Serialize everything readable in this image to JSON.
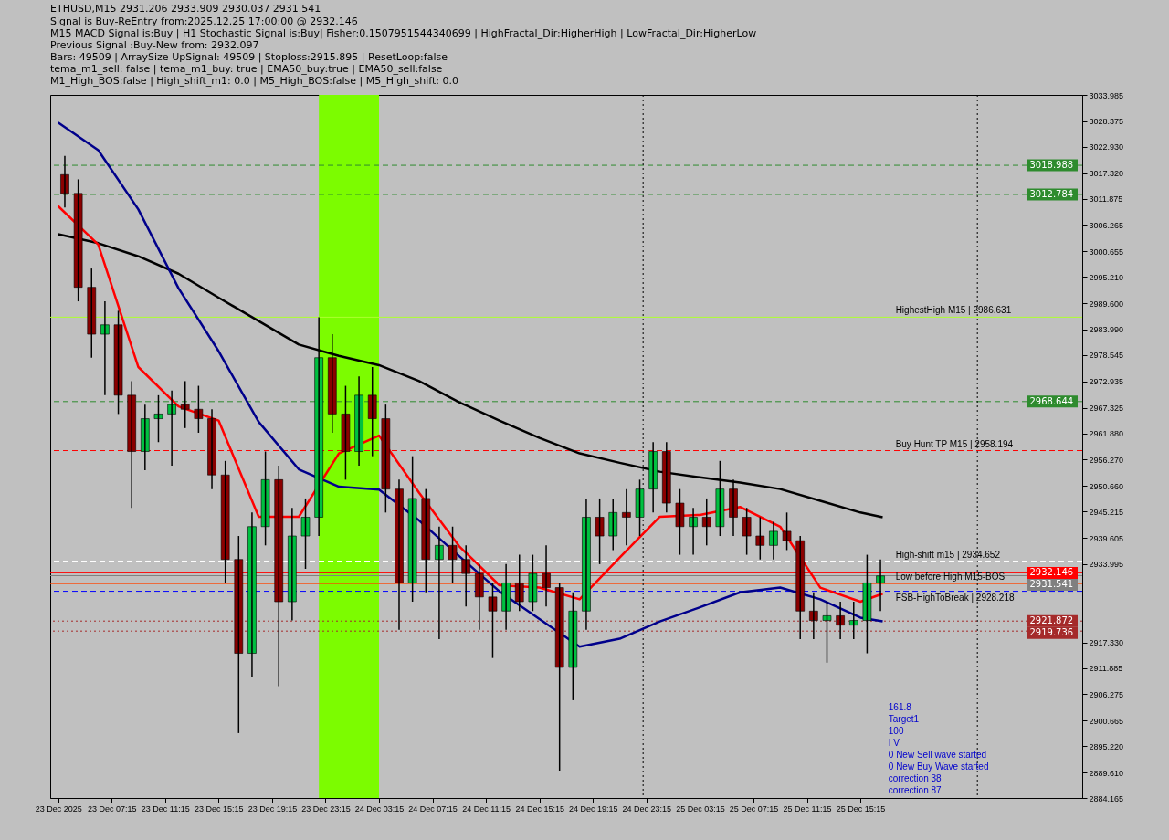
{
  "chart_data": {
    "type": "candlestick",
    "title": "ETHUSD,M15  2931.206 2933.909 2930.037 2931.541",
    "annotations": [
      "Signal is Buy-ReEntry from:2025.12.25 17:00:00 @ 2932.146",
      "M15 MACD Signal is:Buy | H1 Stochastic Signal is:Buy| Fisher:0.1507951544340699 | HighFractal_Dir:HigherHigh | LowFractal_Dir:HigherLow",
      "Previous Signal :Buy-New from: 2932.097",
      "Bars: 49509 | ArraySize UpSignal: 49509 | Stoploss:2915.895 | ResetLoop:false",
      "tema_m1_sell: false | tema_m1_buy: true | EMA50_buy:true | EMA50_sell:false",
      "M1_High_BOS:false | High_shift_m1: 0.0 | M5_High_BOS:false | M5_High_shift: 0.0",
      "161.8",
      "Target1",
      "100",
      "I V",
      "0 New Sell wave started",
      "0 New Buy Wave started",
      "correction 38",
      "correction 87"
    ],
    "x": [
      "2025-12-23T03:45",
      "2025-12-23T04:45",
      "2025-12-23T05:45",
      "2025-12-23T06:45",
      "2025-12-23T07:45",
      "2025-12-23T08:45",
      "2025-12-23T09:45",
      "2025-12-23T10:45",
      "2025-12-23T11:45",
      "2025-12-23T12:45",
      "2025-12-23T13:45",
      "2025-12-23T14:45",
      "2025-12-23T15:45",
      "2025-12-23T16:45",
      "2025-12-23T17:45",
      "2025-12-23T18:45",
      "2025-12-23T19:45",
      "2025-12-23T20:45",
      "2025-12-23T21:45",
      "2025-12-23T22:45",
      "2025-12-23T23:45",
      "2025-12-24T00:45",
      "2025-12-24T01:45",
      "2025-12-24T02:45",
      "2025-12-24T03:45",
      "2025-12-24T04:45",
      "2025-12-24T05:45",
      "2025-12-24T06:45",
      "2025-12-24T07:45",
      "2025-12-24T08:45",
      "2025-12-24T09:45",
      "2025-12-24T10:45",
      "2025-12-24T11:45",
      "2025-12-24T12:45",
      "2025-12-24T13:45",
      "2025-12-24T14:45",
      "2025-12-24T15:45",
      "2025-12-24T16:45",
      "2025-12-24T17:45",
      "2025-12-24T18:45",
      "2025-12-24T19:45",
      "2025-12-24T20:45",
      "2025-12-24T21:45",
      "2025-12-24T22:45",
      "2025-12-24T23:45",
      "2025-12-25T00:45",
      "2025-12-25T01:45",
      "2025-12-25T02:45",
      "2025-12-25T03:45",
      "2025-12-25T04:45",
      "2025-12-25T05:45",
      "2025-12-25T06:45",
      "2025-12-25T07:45",
      "2025-12-25T08:45",
      "2025-12-25T09:45",
      "2025-12-25T10:45",
      "2025-12-25T11:45",
      "2025-12-25T12:45",
      "2025-12-25T13:45",
      "2025-12-25T14:45",
      "2025-12-25T15:45",
      "2025-12-25T16:45"
    ],
    "ohlc": [
      [
        3017,
        3021,
        3010,
        3013
      ],
      [
        3013,
        3016,
        2990,
        2993
      ],
      [
        2993,
        2997,
        2978,
        2983
      ],
      [
        2983,
        2990,
        2970,
        2985
      ],
      [
        2985,
        2988,
        2966,
        2970
      ],
      [
        2970,
        2973,
        2946,
        2958
      ],
      [
        2958,
        2968,
        2954,
        2965
      ],
      [
        2965,
        2970,
        2960,
        2966
      ],
      [
        2966,
        2971,
        2955,
        2968
      ],
      [
        2968,
        2973,
        2963,
        2967
      ],
      [
        2967,
        2972,
        2962,
        2965
      ],
      [
        2965,
        2967,
        2950,
        2953
      ],
      [
        2953,
        2956,
        2930,
        2935
      ],
      [
        2935,
        2940,
        2898,
        2915
      ],
      [
        2915,
        2945,
        2910,
        2942
      ],
      [
        2942,
        2958,
        2938,
        2952
      ],
      [
        2952,
        2955,
        2908,
        2926
      ],
      [
        2926,
        2946,
        2922,
        2940
      ],
      [
        2940,
        2948,
        2933,
        2944
      ],
      [
        2944,
        2986.6,
        2940,
        2978
      ],
      [
        2978,
        2983,
        2962,
        2966
      ],
      [
        2966,
        2972,
        2952,
        2958
      ],
      [
        2958,
        2974,
        2955,
        2970
      ],
      [
        2970,
        2976,
        2957,
        2965
      ],
      [
        2965,
        2968,
        2945,
        2950
      ],
      [
        2950,
        2952,
        2920,
        2930
      ],
      [
        2930,
        2957,
        2926,
        2948
      ],
      [
        2948,
        2950,
        2928,
        2935
      ],
      [
        2935,
        2942,
        2918,
        2938
      ],
      [
        2938,
        2942,
        2930,
        2935
      ],
      [
        2935,
        2938,
        2925,
        2932
      ],
      [
        2932,
        2934,
        2920,
        2927
      ],
      [
        2927,
        2930,
        2914,
        2924
      ],
      [
        2924,
        2934,
        2920,
        2930
      ],
      [
        2930,
        2936,
        2924,
        2926
      ],
      [
        2926,
        2936,
        2924,
        2932
      ],
      [
        2932,
        2938,
        2925,
        2929
      ],
      [
        2929,
        2930,
        2890,
        2912
      ],
      [
        2912,
        2928,
        2905,
        2924
      ],
      [
        2924,
        2948,
        2920,
        2944
      ],
      [
        2944,
        2948,
        2934,
        2940
      ],
      [
        2940,
        2948,
        2937,
        2945
      ],
      [
        2945,
        2950,
        2938,
        2944
      ],
      [
        2944,
        2952,
        2940,
        2950
      ],
      [
        2950,
        2960,
        2945,
        2958
      ],
      [
        2958,
        2960,
        2945,
        2947
      ],
      [
        2947,
        2950,
        2936,
        2942
      ],
      [
        2942,
        2946,
        2936,
        2944
      ],
      [
        2944,
        2948,
        2938,
        2942
      ],
      [
        2942,
        2956,
        2940,
        2950
      ],
      [
        2950,
        2952,
        2940,
        2944
      ],
      [
        2944,
        2946,
        2936,
        2940
      ],
      [
        2940,
        2944,
        2935,
        2938
      ],
      [
        2938,
        2943,
        2935,
        2941
      ],
      [
        2941,
        2945,
        2937,
        2939
      ],
      [
        2939,
        2940,
        2918,
        2924
      ],
      [
        2924,
        2928,
        2918,
        2922
      ],
      [
        2922,
        2926,
        2913,
        2923
      ],
      [
        2923,
        2926,
        2918,
        2921
      ],
      [
        2921,
        2926,
        2918,
        2922
      ],
      [
        2922,
        2936,
        2915,
        2930
      ],
      [
        2930,
        2935,
        2924,
        2931.5
      ]
    ],
    "series": [
      {
        "type": "line",
        "color": "#000000",
        "x": [
          "2025-12-23T03:15",
          "2025-12-23T06:15",
          "2025-12-23T09:15",
          "2025-12-23T12:15",
          "2025-12-23T15:15",
          "2025-12-23T18:15",
          "2025-12-23T21:15",
          "2025-12-24T00:15",
          "2025-12-24T03:15",
          "2025-12-24T06:15",
          "2025-12-24T09:15",
          "2025-12-24T12:15",
          "2025-12-24T15:15",
          "2025-12-24T18:15",
          "2025-12-24T21:15",
          "2025-12-25T00:15",
          "2025-12-25T03:15",
          "2025-12-25T06:15",
          "2025-12-25T09:15",
          "2025-12-25T12:15",
          "2025-12-25T15:15",
          "2025-12-25T16:55"
        ],
        "values": [
          3004.3,
          3002.4,
          2999.6,
          2995.9,
          2990.8,
          2985.8,
          2980.8,
          2978.4,
          2976.4,
          2973.0,
          2968.5,
          2964.6,
          2960.9,
          2957.6,
          2955.6,
          2953.7,
          2952.5,
          2951.4,
          2950.0,
          2947.5,
          2945.0,
          2944.0
        ]
      },
      {
        "type": "line",
        "color": "#00008b",
        "x": [
          "2025-12-23T03:15",
          "2025-12-23T06:15",
          "2025-12-23T09:15",
          "2025-12-23T12:15",
          "2025-12-23T15:15",
          "2025-12-23T18:15",
          "2025-12-23T21:15",
          "2025-12-24T00:15",
          "2025-12-24T03:15",
          "2025-12-24T06:15",
          "2025-12-24T09:15",
          "2025-12-24T12:15",
          "2025-12-24T15:15",
          "2025-12-24T18:15",
          "2025-12-24T21:15",
          "2025-12-25T00:15",
          "2025-12-25T03:15",
          "2025-12-25T06:15",
          "2025-12-25T09:15",
          "2025-12-25T12:15",
          "2025-12-25T15:15",
          "2025-12-25T16:55"
        ],
        "values": [
          3028.1,
          3022.2,
          3009.6,
          2992.8,
          2979.4,
          2964.3,
          2954.2,
          2950.5,
          2949.9,
          2943.3,
          2935.7,
          2928.2,
          2922.3,
          2916.4,
          2918.1,
          2921.8,
          2924.8,
          2928.0,
          2929.0,
          2926.5,
          2922.6,
          2921.8
        ]
      },
      {
        "type": "line",
        "color": "#ff0000",
        "x": [
          "2025-12-23T03:15",
          "2025-12-23T06:15",
          "2025-12-23T09:15",
          "2025-12-23T12:15",
          "2025-12-23T15:15",
          "2025-12-23T18:15",
          "2025-12-23T21:15",
          "2025-12-24T00:15",
          "2025-12-24T03:15",
          "2025-12-24T06:15",
          "2025-12-24T09:15",
          "2025-12-24T12:15",
          "2025-12-24T15:15",
          "2025-12-24T18:15",
          "2025-12-24T21:15",
          "2025-12-25T00:15",
          "2025-12-25T03:15",
          "2025-12-25T06:15",
          "2025-12-25T09:15",
          "2025-12-25T12:15",
          "2025-12-25T15:15",
          "2025-12-25T16:55"
        ],
        "values": [
          3010.3,
          3002.1,
          2976.0,
          2967.6,
          2964.6,
          2944.1,
          2944.1,
          2957.6,
          2961.4,
          2949.2,
          2937.8,
          2929.5,
          2929.0,
          2926.5,
          2935.4,
          2944.1,
          2944.5,
          2946.2,
          2942.0,
          2929.0,
          2926.0,
          2927.7
        ]
      }
    ],
    "xlim": [
      "2025-12-23T03:00",
      "2025-12-26T07:30"
    ],
    "xticks": [
      {
        "value": "2025-12-23T03:15",
        "label": "23 Dec 2025"
      },
      {
        "value": "2025-12-23T07:15",
        "label": "23 Dec 07:15"
      },
      {
        "value": "2025-12-23T11:15",
        "label": "23 Dec 11:15"
      },
      {
        "value": "2025-12-23T15:15",
        "label": "23 Dec 15:15"
      },
      {
        "value": "2025-12-23T19:15",
        "label": "23 Dec 19:15"
      },
      {
        "value": "2025-12-23T23:15",
        "label": "23 Dec 23:15"
      },
      {
        "value": "2025-12-24T03:15",
        "label": "24 Dec 03:15"
      },
      {
        "value": "2025-12-24T07:15",
        "label": "24 Dec 07:15"
      },
      {
        "value": "2025-12-24T11:15",
        "label": "24 Dec 11:15"
      },
      {
        "value": "2025-12-24T15:15",
        "label": "24 Dec 15:15"
      },
      {
        "value": "2025-12-24T19:15",
        "label": "24 Dec 19:15"
      },
      {
        "value": "2025-12-24T23:15",
        "label": "24 Dec 23:15"
      },
      {
        "value": "2025-12-25T03:15",
        "label": "25 Dec 03:15"
      },
      {
        "value": "2025-12-25T07:15",
        "label": "25 Dec 07:15"
      },
      {
        "value": "2025-12-25T11:15",
        "label": "25 Dec 11:15"
      },
      {
        "value": "2025-12-25T15:15",
        "label": "25 Dec 15:15"
      }
    ],
    "ylim": [
      2884.165,
      3033.985
    ],
    "yticks": [
      3033.985,
      3028.375,
      {
        "value": 3022.93,
        "label": "3022.930"
      },
      {
        "value": 3017.32,
        "label": "3017.320"
      },
      3011.875,
      3006.265,
      3000.655,
      {
        "value": 2995.21,
        "label": "2995.210"
      },
      {
        "value": 2989.6,
        "label": "2989.600"
      },
      {
        "value": 2983.99,
        "label": "2983.990"
      },
      2978.545,
      2972.935,
      2967.325,
      {
        "value": 2961.88,
        "label": "2961.880"
      },
      {
        "value": 2956.27,
        "label": "2956.270"
      },
      {
        "value": 2950.66,
        "label": "2950.660"
      },
      2945.215,
      2939.605,
      2933.995,
      {
        "value": 2917.33,
        "label": "2917.330"
      },
      2911.885,
      2906.275,
      2900.665,
      {
        "value": 2895.22,
        "label": "2895.220"
      },
      {
        "value": 2889.61,
        "label": "2889.610"
      },
      2884.165
    ],
    "ref_lines": [
      {
        "axis": "y",
        "value": 3018.988,
        "label": "3018.988",
        "color": "#2e8b2e",
        "line_style": "dashed"
      },
      {
        "axis": "y",
        "value": 3012.784,
        "label": "3012.784",
        "color": "#2e8b2e",
        "line_style": "dashed"
      },
      {
        "axis": "y",
        "value": 2968.644,
        "label": "2968.644",
        "color": "#2e8b2e",
        "line_style": "dashed"
      },
      {
        "axis": "y",
        "value": 2986.631,
        "label": "HighestHigh   M15 | 2986.631",
        "color": "#adff2f",
        "line_style": "solid"
      },
      {
        "axis": "y",
        "value": 2958.194,
        "label": "Buy Hunt TP M15 | 2958.194",
        "color": "#ff0000",
        "line_style": "dashed"
      },
      {
        "axis": "y",
        "value": 2934.652,
        "label": "High-shift m15 | 2934.652",
        "color": "#ffffff",
        "line_style": "dashed"
      },
      {
        "axis": "y",
        "value": 2929.85,
        "label": "Low before High   M15-BOS",
        "color": "#ff4500",
        "line_style": "solid"
      },
      {
        "axis": "y",
        "value": 2928.218,
        "label": "FSB-HighToBreak | 2928.218",
        "color": "#0000ff",
        "line_style": "dashed"
      },
      {
        "axis": "y",
        "value": 2932.146,
        "label": "2932.146",
        "color": "#ff0000",
        "line_style": "solid"
      },
      {
        "axis": "y",
        "value": 2931.541,
        "label": "2931.541",
        "color": "#808080",
        "line_style": "solid"
      },
      {
        "axis": "y",
        "value": 2921.872,
        "label": "2921.872",
        "color": "#a52a2a",
        "line_style": "dotted"
      },
      {
        "axis": "y",
        "value": 2919.736,
        "label": "2919.736",
        "color": "#a52a2a",
        "line_style": "dotted"
      },
      {
        "axis": "x",
        "value": "2025-12-24T23:00",
        "label": null,
        "color": "#000000",
        "line_style": "dotted"
      },
      {
        "axis": "x",
        "value": "2025-12-26T00:00",
        "label": null,
        "color": "#000000",
        "line_style": "dotted"
      }
    ],
    "bands": [
      {
        "axis": "x",
        "from": "2025-12-23T22:45",
        "to": "2025-12-24T03:15",
        "label": null,
        "color": "#7cfc00"
      }
    ]
  }
}
